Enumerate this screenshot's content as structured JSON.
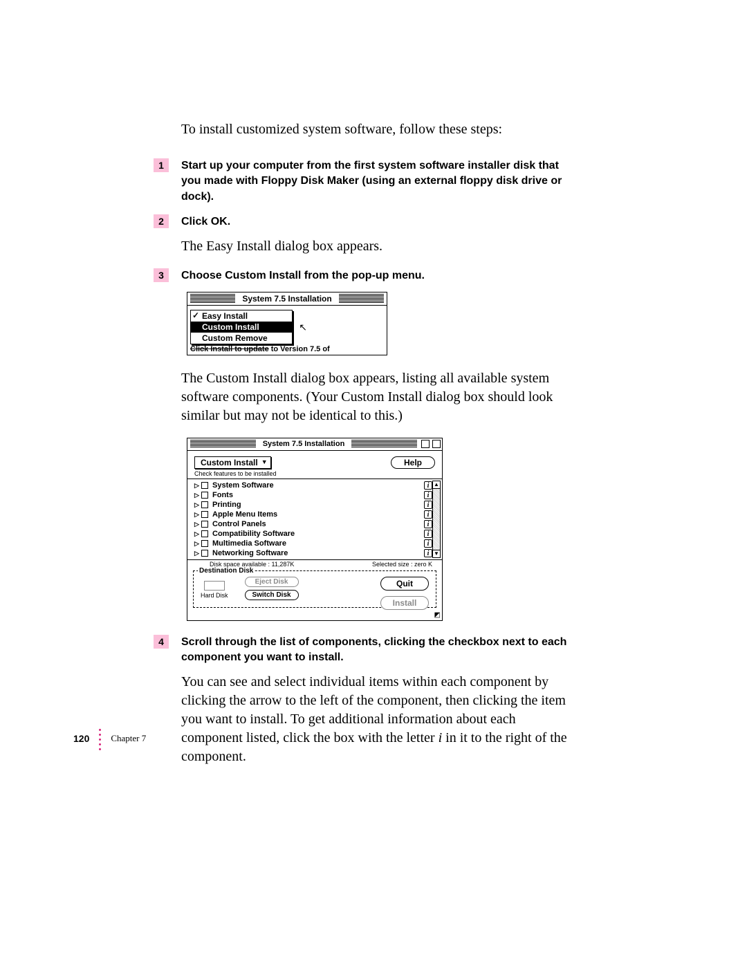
{
  "intro": "To install customized system software, follow these steps:",
  "steps": {
    "s1": {
      "num": "1",
      "text": "Start up your computer from the first system software installer disk that you made with Floppy Disk Maker (using an external floppy disk drive or dock)."
    },
    "s2": {
      "num": "2",
      "text": "Click OK.",
      "body": "The Easy Install dialog box appears."
    },
    "s3": {
      "num": "3",
      "text": "Choose Custom Install from the pop-up menu.",
      "body": "The Custom Install dialog box appears, listing all available system software components. (Your Custom Install dialog box should look similar but may not be identical to this.)"
    },
    "s4": {
      "num": "4",
      "text": "Scroll through the list of components, clicking the checkbox next to each component you want to install.",
      "body_pre": "You can see and select individual items within each component by clicking the arrow to the left of the component, then clicking the item you want to install. To get additional information about each component listed, click the box with the letter ",
      "body_i": "i",
      "body_post": " in it to the right of the component."
    }
  },
  "dlg1": {
    "title": "System 7.5 Installation",
    "menu": {
      "easy": "Easy Install",
      "custom": "Custom Install",
      "remove": "Custom Remove"
    },
    "caption_struck": "Click Install to update",
    "caption_tail": " to Version 7.5 of"
  },
  "dlg2": {
    "title": "System 7.5 Installation",
    "mode": "Custom Install",
    "help": "Help",
    "check_label": "Check features to be installed",
    "features": {
      "f0": "System Software",
      "f1": "Fonts",
      "f2": "Printing",
      "f3": "Apple Menu Items",
      "f4": "Control Panels",
      "f5": "Compatibility Software",
      "f6": "Multimedia Software",
      "f7": "Networking Software"
    },
    "disk_space": "Disk space available : 11,287K",
    "selected_size": "Selected size : zero K",
    "dest_legend": "Destination Disk",
    "disk_name": "Hard Disk",
    "eject": "Eject Disk",
    "switch": "Switch Disk",
    "quit": "Quit",
    "install": "Install",
    "info_letter": "i"
  },
  "footer": {
    "page": "120",
    "chapter": "Chapter 7"
  },
  "colors": {
    "step_bg": "#fbbfd9",
    "dot": "#d9237a"
  }
}
